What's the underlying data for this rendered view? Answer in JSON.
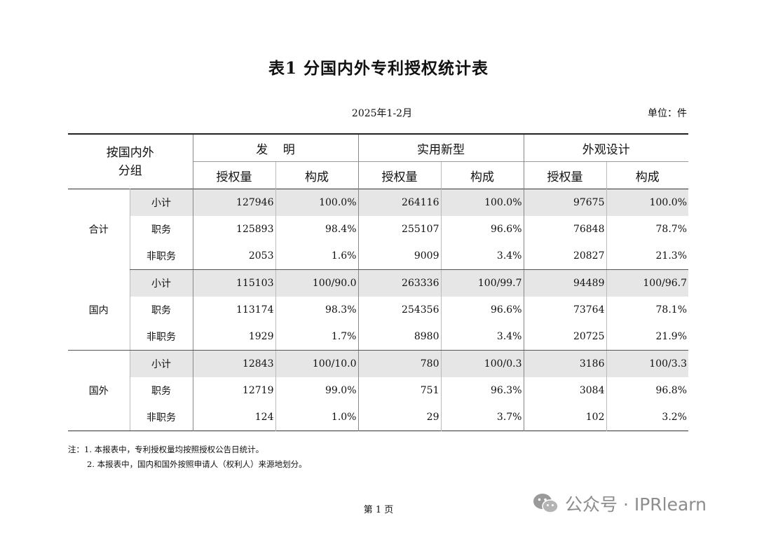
{
  "title": "表1  分国内外专利授权统计表",
  "period": "2025年1-2月",
  "unit": "单位：件",
  "header": {
    "row_header": [
      "按国内外",
      "分组"
    ],
    "groups": [
      "发    明",
      "实用新型",
      "外观设计"
    ],
    "subcols": [
      "授权量",
      "构成",
      "授权量",
      "构成",
      "授权量",
      "构成"
    ]
  },
  "rows": [
    {
      "group": "合计",
      "cat": "小计",
      "v": [
        "127946",
        "100.0%",
        "264116",
        "100.0%",
        "97675",
        "100.0%"
      ]
    },
    {
      "group": "合计",
      "cat": "职务",
      "v": [
        "125893",
        "98.4%",
        "255107",
        "96.6%",
        "76848",
        "78.7%"
      ]
    },
    {
      "group": "合计",
      "cat": "非职务",
      "v": [
        "2053",
        "1.6%",
        "9009",
        "3.4%",
        "20827",
        "21.3%"
      ]
    },
    {
      "group": "国内",
      "cat": "小计",
      "v": [
        "115103",
        "100/90.0",
        "263336",
        "100/99.7",
        "94489",
        "100/96.7"
      ]
    },
    {
      "group": "国内",
      "cat": "职务",
      "v": [
        "113174",
        "98.3%",
        "254356",
        "96.6%",
        "73764",
        "78.1%"
      ]
    },
    {
      "group": "国内",
      "cat": "非职务",
      "v": [
        "1929",
        "1.7%",
        "8980",
        "3.4%",
        "20725",
        "21.9%"
      ]
    },
    {
      "group": "国外",
      "cat": "小计",
      "v": [
        "12843",
        "100/10.0",
        "780",
        "100/0.3",
        "3186",
        "100/3.3"
      ]
    },
    {
      "group": "国外",
      "cat": "职务",
      "v": [
        "12719",
        "99.0%",
        "751",
        "96.3%",
        "3084",
        "96.8%"
      ]
    },
    {
      "group": "国外",
      "cat": "非职务",
      "v": [
        "124",
        "1.0%",
        "29",
        "3.7%",
        "102",
        "3.2%"
      ]
    }
  ],
  "notes": [
    "注：1. 本报表中，专利授权量均按照授权公告日统计。",
    "2. 本报表中，国内和国外按照申请人（权利人）来源地划分。"
  ],
  "page_number": "第 1 页",
  "watermark": {
    "text": "公众号 · IPRlearn",
    "icon": "wechat-logo-icon"
  }
}
